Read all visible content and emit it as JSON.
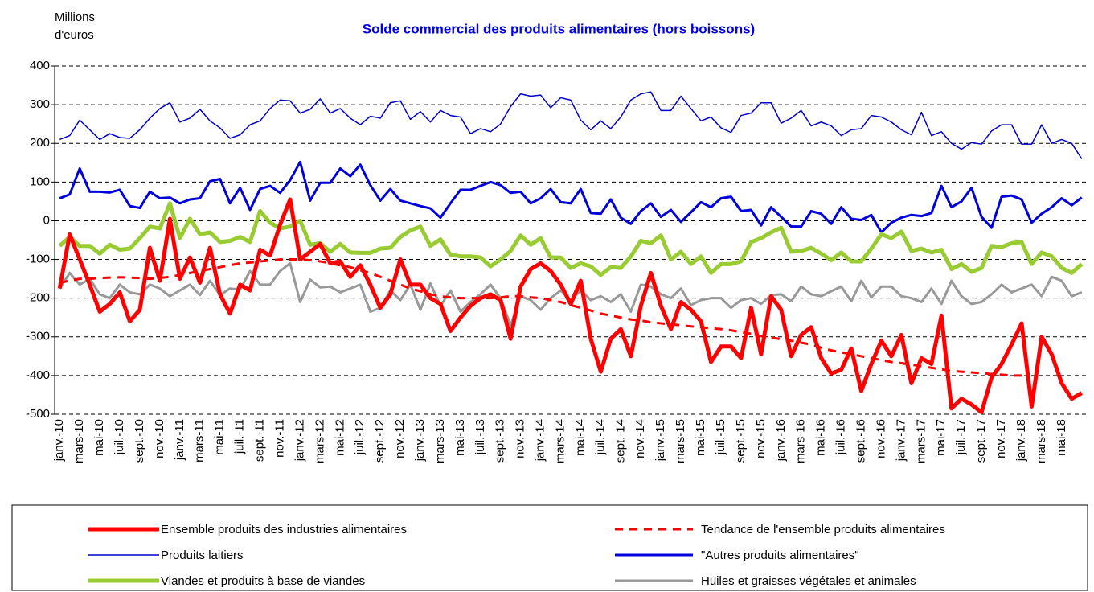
{
  "chart_data": {
    "type": "line",
    "title": "Solde commercial des produits alimentaires (hors boissons)",
    "ylabel_lines": [
      "Millions",
      "d'euros"
    ],
    "ylim": [
      -500,
      400
    ],
    "yticks": [
      -500,
      -400,
      -300,
      -200,
      -100,
      0,
      100,
      200,
      300,
      400
    ],
    "grid": true,
    "categories": [
      "janv.-10",
      null,
      "mars-10",
      null,
      "mai-10",
      null,
      "juil.-10",
      null,
      "sept.-10",
      null,
      "nov.-10",
      null,
      "janv.-11",
      null,
      "mars-11",
      null,
      "mai-11",
      null,
      "juil.-11",
      null,
      "sept.-11",
      null,
      "nov.-11",
      null,
      "janv.-12",
      null,
      "mars-12",
      null,
      "mai-12",
      null,
      "juil.-12",
      null,
      "sept.-12",
      null,
      "nov.-12",
      null,
      "janv.-13",
      null,
      "mars-13",
      null,
      "mai-13",
      null,
      "juil.-13",
      null,
      "sept.-13",
      null,
      "nov.-13",
      null,
      "janv.-14",
      null,
      "mars-14",
      null,
      "mai-14",
      null,
      "juil.-14",
      null,
      "sept.-14",
      null,
      "nov.-14",
      null,
      "janv.-15",
      null,
      "mars-15",
      null,
      "mai-15",
      null,
      "juil.-15",
      null,
      "sept.-15",
      null,
      "nov.-15",
      null,
      "janv.-16",
      null,
      "mars-16",
      null,
      "mai-16",
      null,
      "juil.-16",
      null,
      "sept.-16",
      null,
      "nov.-16",
      null,
      "janv.-17",
      null,
      "mars-17",
      null,
      "mai-17",
      null,
      "juil.-17",
      null,
      "sept.-17",
      null,
      "nov.-17",
      null,
      "janv.-18",
      null,
      "mars-18",
      null,
      "mai-18",
      null,
      null
    ],
    "series": [
      {
        "name": "Ensemble produits des industries alimentaires",
        "color": "#ff0000",
        "linewidth": 5,
        "style": "solid",
        "values": [
          -175,
          -35,
          -100,
          -165,
          -235,
          -215,
          -185,
          -260,
          -230,
          -70,
          -155,
          5,
          -150,
          -95,
          -160,
          -70,
          -190,
          -240,
          -165,
          -180,
          -75,
          -90,
          -10,
          55,
          -100,
          -80,
          -60,
          -110,
          -105,
          -145,
          -115,
          -165,
          -225,
          -190,
          -100,
          -165,
          -165,
          -200,
          -215,
          -285,
          -250,
          -220,
          -200,
          -190,
          -205,
          -305,
          -170,
          -125,
          -110,
          -130,
          -165,
          -215,
          -155,
          -305,
          -390,
          -305,
          -280,
          -350,
          -220,
          -135,
          -220,
          -280,
          -210,
          -230,
          -260,
          -365,
          -325,
          -325,
          -355,
          -225,
          -345,
          -195,
          -230,
          -350,
          -295,
          -275,
          -355,
          -395,
          -385,
          -330,
          -440,
          -370,
          -310,
          -350,
          -295,
          -420,
          -355,
          -370,
          -245,
          -485,
          -460,
          -475,
          -495,
          -405,
          -370,
          -320,
          -265,
          -480,
          -300,
          -345,
          -420,
          -460,
          -445
        ]
      },
      {
        "name": "Tendance de l'ensemble produits alimentaires",
        "color": "#ff0000",
        "linewidth": 3,
        "style": "dashed",
        "values": [
          -160,
          -155,
          -150,
          -150,
          -148,
          -147,
          -146,
          -147,
          -148,
          -150,
          -148,
          -145,
          -140,
          -135,
          -130,
          -125,
          -120,
          -115,
          -110,
          -108,
          -105,
          -103,
          -100,
          -100,
          -100,
          -102,
          -105,
          -110,
          -115,
          -120,
          -128,
          -135,
          -145,
          -155,
          -165,
          -175,
          -182,
          -190,
          -195,
          -198,
          -200,
          -200,
          -200,
          -200,
          -198,
          -195,
          -195,
          -198,
          -200,
          -205,
          -210,
          -218,
          -225,
          -232,
          -240,
          -245,
          -250,
          -255,
          -258,
          -262,
          -265,
          -268,
          -270,
          -273,
          -275,
          -278,
          -280,
          -283,
          -288,
          -292,
          -298,
          -302,
          -306,
          -310,
          -315,
          -320,
          -328,
          -335,
          -340,
          -345,
          -350,
          -355,
          -360,
          -365,
          -368,
          -372,
          -376,
          -380,
          -384,
          -388,
          -390,
          -392,
          -394,
          -396,
          -398,
          -400,
          -400,
          null,
          null,
          null,
          null,
          null,
          null
        ]
      },
      {
        "name": "Produits laitiers",
        "color": "#0000cc",
        "linewidth": 1.5,
        "style": "solid",
        "values": [
          210,
          220,
          260,
          235,
          210,
          225,
          215,
          213,
          235,
          265,
          290,
          305,
          255,
          265,
          288,
          258,
          240,
          213,
          222,
          248,
          258,
          290,
          312,
          310,
          278,
          288,
          315,
          278,
          290,
          265,
          248,
          270,
          265,
          305,
          310,
          262,
          282,
          255,
          285,
          272,
          268,
          225,
          238,
          230,
          250,
          295,
          328,
          322,
          325,
          292,
          318,
          312,
          260,
          235,
          258,
          238,
          268,
          312,
          328,
          333,
          285,
          285,
          322,
          290,
          258,
          268,
          240,
          228,
          272,
          278,
          305,
          305,
          252,
          265,
          285,
          245,
          255,
          245,
          220,
          235,
          238,
          272,
          268,
          255,
          235,
          222,
          280,
          220,
          230,
          200,
          185,
          202,
          198,
          232,
          248,
          248,
          198,
          198,
          248,
          200,
          210,
          200,
          160
        ]
      },
      {
        "name": "\"Autres produits alimentaires\"",
        "color": "#0000dd",
        "linewidth": 3,
        "style": "solid",
        "values": [
          58,
          68,
          135,
          75,
          75,
          73,
          80,
          38,
          33,
          75,
          58,
          60,
          45,
          55,
          58,
          102,
          108,
          45,
          85,
          28,
          82,
          90,
          72,
          105,
          152,
          52,
          98,
          98,
          135,
          115,
          145,
          92,
          52,
          82,
          52,
          45,
          38,
          32,
          8,
          45,
          80,
          80,
          90,
          100,
          92,
          72,
          75,
          45,
          58,
          82,
          48,
          45,
          82,
          20,
          18,
          55,
          8,
          -8,
          25,
          45,
          10,
          28,
          -3,
          22,
          48,
          35,
          58,
          62,
          25,
          28,
          -12,
          35,
          10,
          -15,
          -15,
          25,
          18,
          -8,
          35,
          5,
          2,
          15,
          -30,
          -5,
          8,
          15,
          12,
          20,
          90,
          35,
          50,
          85,
          10,
          -18,
          62,
          65,
          55,
          -5,
          18,
          35,
          58,
          40,
          60
        ]
      },
      {
        "name": "Viandes et produits à base de viandes",
        "color": "#99cc33",
        "linewidth": 5,
        "style": "solid",
        "values": [
          -65,
          -42,
          -65,
          -65,
          -85,
          -62,
          -75,
          -72,
          -45,
          -15,
          -20,
          45,
          -45,
          5,
          -35,
          -30,
          -55,
          -52,
          -42,
          -55,
          25,
          -5,
          -20,
          -15,
          0,
          -62,
          -58,
          -80,
          -60,
          -82,
          -83,
          -83,
          -72,
          -70,
          -42,
          -25,
          -15,
          -65,
          -48,
          -88,
          -92,
          -92,
          -95,
          -118,
          -100,
          -78,
          -38,
          -62,
          -45,
          -95,
          -95,
          -122,
          -110,
          -118,
          -140,
          -120,
          -122,
          -92,
          -52,
          -58,
          -38,
          -100,
          -80,
          -112,
          -92,
          -135,
          -112,
          -112,
          -105,
          -55,
          -45,
          -30,
          -18,
          -80,
          -78,
          -70,
          -85,
          -102,
          -82,
          -105,
          -105,
          -72,
          -35,
          -45,
          -28,
          -78,
          -72,
          -82,
          -75,
          -125,
          -112,
          -132,
          -122,
          -65,
          -68,
          -58,
          -55,
          -112,
          -82,
          -92,
          -122,
          -135,
          -112
        ]
      },
      {
        "name": "Huiles et graisses végétales et animales",
        "color": "#999999",
        "linewidth": 3,
        "style": "solid",
        "values": [
          -175,
          -135,
          -165,
          -150,
          -190,
          -200,
          -165,
          -185,
          -190,
          -165,
          -175,
          -195,
          -180,
          -165,
          -192,
          -155,
          -192,
          -175,
          -178,
          -130,
          -165,
          -165,
          -130,
          -110,
          -210,
          -152,
          -172,
          -170,
          -185,
          -175,
          -165,
          -235,
          -225,
          -180,
          -205,
          -165,
          -230,
          -162,
          -220,
          -180,
          -235,
          -210,
          -190,
          -165,
          -200,
          -270,
          -195,
          -205,
          -230,
          -200,
          -180,
          -205,
          -180,
          -205,
          -195,
          -210,
          -190,
          -235,
          -165,
          -170,
          -190,
          -200,
          -175,
          -218,
          -205,
          -200,
          -200,
          -225,
          -205,
          -200,
          -215,
          -192,
          -190,
          -208,
          -170,
          -190,
          -195,
          -182,
          -170,
          -208,
          -155,
          -198,
          -170,
          -170,
          -195,
          -200,
          -210,
          -175,
          -215,
          -155,
          -195,
          -215,
          -210,
          -190,
          -165,
          -185,
          -175,
          -165,
          -195,
          -145,
          -155,
          -195,
          -185
        ]
      }
    ]
  }
}
